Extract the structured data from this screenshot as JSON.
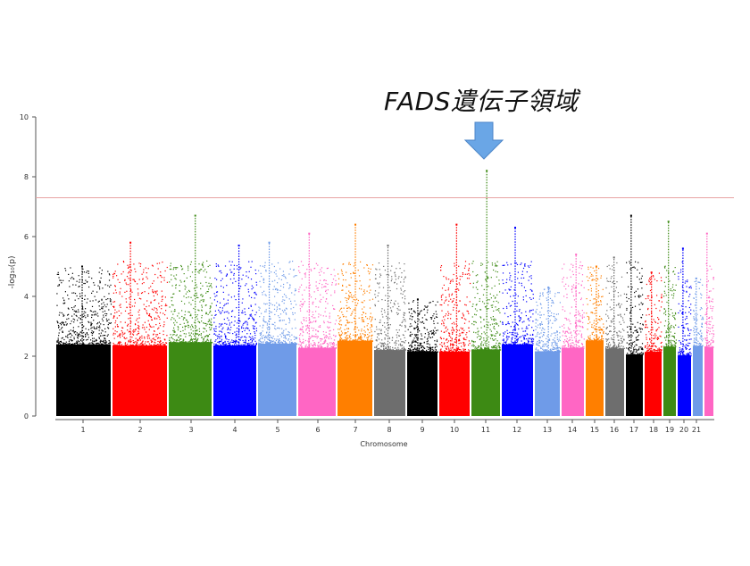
{
  "annotation": {
    "text": "FADS遺伝子領域",
    "arrow_color": "#6aa6e6"
  },
  "chart_data": {
    "type": "scatter",
    "subtype": "manhattan",
    "title": "",
    "xlabel": "Chromosome",
    "ylabel": "-log₁₀(p)",
    "ylim": [
      0,
      10
    ],
    "yticks": [
      0,
      2,
      4,
      6,
      8,
      10
    ],
    "threshold": {
      "value": 7.3,
      "color": "#e8a3a3"
    },
    "grid": false,
    "legend": "none",
    "chromosomes": [
      {
        "label": "1",
        "color": "#000000",
        "peak": 5.0
      },
      {
        "label": "2",
        "color": "#ff0000",
        "peak": 5.8
      },
      {
        "label": "3",
        "color": "#3d8a14",
        "peak": 6.7
      },
      {
        "label": "4",
        "color": "#0000ff",
        "peak": 5.7
      },
      {
        "label": "5",
        "color": "#6f9be8",
        "peak": 5.8
      },
      {
        "label": "6",
        "color": "#ff66c4",
        "peak": 6.1
      },
      {
        "label": "7",
        "color": "#ff7f00",
        "peak": 6.4
      },
      {
        "label": "8",
        "color": "#6e6e6e",
        "peak": 5.7
      },
      {
        "label": "9",
        "color": "#000000",
        "peak": 3.9
      },
      {
        "label": "10",
        "color": "#ff0000",
        "peak": 6.4
      },
      {
        "label": "11",
        "color": "#3d8a14",
        "peak": 8.2
      },
      {
        "label": "12",
        "color": "#0000ff",
        "peak": 6.3
      },
      {
        "label": "13",
        "color": "#6f9be8",
        "peak": 4.3
      },
      {
        "label": "14",
        "color": "#ff66c4",
        "peak": 5.4
      },
      {
        "label": "15",
        "color": "#ff7f00",
        "peak": 5.0
      },
      {
        "label": "16",
        "color": "#6e6e6e",
        "peak": 5.3
      },
      {
        "label": "17",
        "color": "#000000",
        "peak": 6.7
      },
      {
        "label": "18",
        "color": "#ff0000",
        "peak": 4.8
      },
      {
        "label": "19",
        "color": "#3d8a14",
        "peak": 6.5
      },
      {
        "label": "20",
        "color": "#0000ff",
        "peak": 5.6
      },
      {
        "label": "21",
        "color": "#6f9be8",
        "peak": 4.6
      },
      {
        "label": "",
        "color": "#ff66c4",
        "peak": 6.1
      }
    ]
  }
}
